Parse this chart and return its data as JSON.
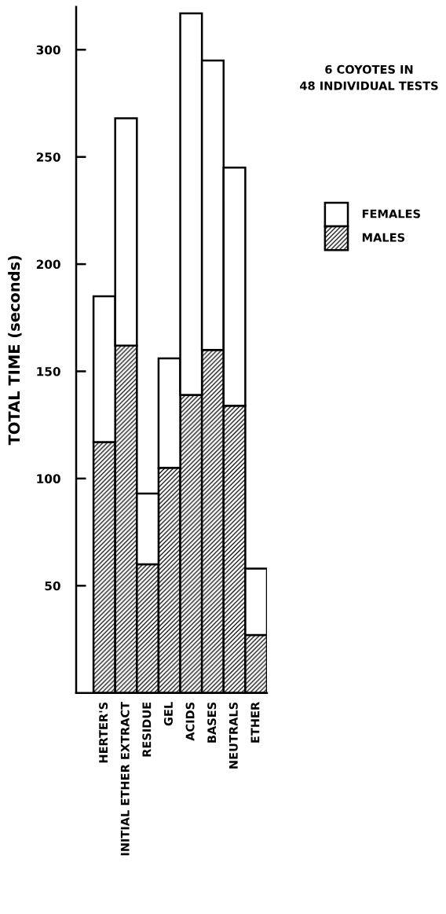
{
  "chart_data": {
    "type": "bar",
    "stacked": true,
    "ylabel": "TOTAL TIME (seconds)",
    "categories": [
      "HERTER'S",
      "INITIAL ETHER EXTRACT",
      "RESIDUE",
      "GEL",
      "ACIDS",
      "BASES",
      "NEUTRALS",
      "ETHER"
    ],
    "series": [
      {
        "name": "MALES",
        "color": "#000000",
        "values": [
          117,
          162,
          60,
          105,
          139,
          160,
          134,
          27
        ]
      },
      {
        "name": "FEMALES",
        "color": "#ffffff",
        "values": [
          68,
          106,
          33,
          51,
          178,
          135,
          111,
          31
        ]
      }
    ],
    "ylim": [
      0,
      320
    ],
    "yticks": [
      50,
      100,
      150,
      200,
      250,
      300
    ],
    "annotations": [
      "6 COYOTES IN\n48 INDIVIDUAL TESTS"
    ],
    "legend": "right",
    "grid": false
  }
}
